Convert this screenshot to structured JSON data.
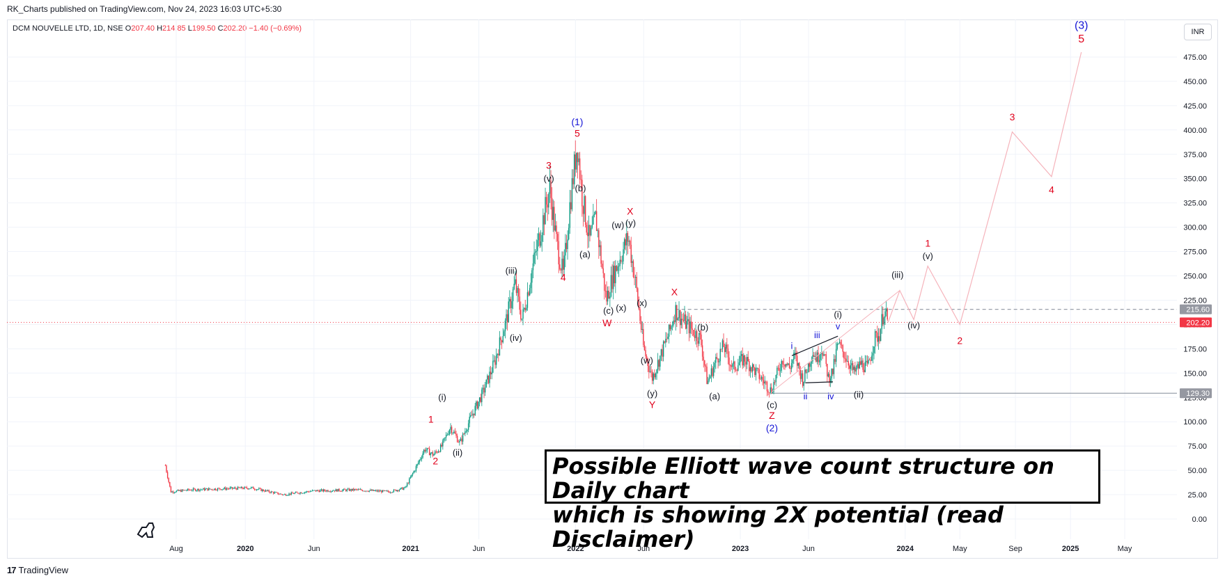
{
  "header": {
    "published": "RK_Charts published on TradingView.com, Nov 24, 2023 16:03 UTC+5:30"
  },
  "legend": {
    "symbol": "DCM NOUVELLE LTD, 1D, NSE",
    "open_label": "O",
    "open": "207.40",
    "high_label": "H",
    "high": "214.85",
    "low_label": "L",
    "low": "199.50",
    "close_label": "C",
    "close": "202.20",
    "change": "−1.40 (−0.69%)"
  },
  "currency_button": "INR",
  "footer": {
    "brand": "TradingView",
    "brand_mark": "17"
  },
  "annotation_box": {
    "text": "Possible Elliott wave count structure on Daily chart\nwhich is showing 2X potential (read Disclaimer)"
  },
  "colors": {
    "up": "#089981",
    "down": "#f23645",
    "wave_red": "#e0001b",
    "wave_blue": "#1515d6",
    "projection": "#f5b3bb",
    "grid": "#f0f3fa"
  },
  "chart_data": {
    "type": "candlestick",
    "title": "DCM NOUVELLE LTD, 1D, NSE",
    "ylabel": "INR",
    "ylim": [
      0,
      500
    ],
    "y_ticks": [
      "0.00",
      "25.00",
      "50.00",
      "75.00",
      "100.00",
      "125.00",
      "150.00",
      "175.00",
      "200.00",
      "225.00",
      "250.00",
      "275.00",
      "300.00",
      "325.00",
      "350.00",
      "375.00",
      "400.00",
      "425.00",
      "450.00",
      "475.00"
    ],
    "x_ticks": [
      {
        "label": "Aug",
        "date": "2019-08-01"
      },
      {
        "label": "2020",
        "date": "2020-01-01"
      },
      {
        "label": "Jun",
        "date": "2020-06-01"
      },
      {
        "label": "2021",
        "date": "2021-01-01"
      },
      {
        "label": "Jun",
        "date": "2021-06-01"
      },
      {
        "label": "2022",
        "date": "2022-01-01"
      },
      {
        "label": "Jun",
        "date": "2022-06-01"
      },
      {
        "label": "2023",
        "date": "2023-01-01"
      },
      {
        "label": "Jun",
        "date": "2023-06-01"
      },
      {
        "label": "2024",
        "date": "2024-01-01"
      },
      {
        "label": "May",
        "date": "2024-05-01"
      },
      {
        "label": "Sep",
        "date": "2024-09-01"
      },
      {
        "label": "2025",
        "date": "2025-01-01"
      },
      {
        "label": "May",
        "date": "2025-05-01"
      }
    ],
    "price_path": [
      [
        "2019-07-08",
        55
      ],
      [
        "2019-07-20",
        28
      ],
      [
        "2019-09-01",
        30
      ],
      [
        "2019-11-01",
        31
      ],
      [
        "2020-01-15",
        32
      ],
      [
        "2020-03-25",
        25
      ],
      [
        "2020-06-01",
        29
      ],
      [
        "2020-09-01",
        30
      ],
      [
        "2020-11-15",
        28
      ],
      [
        "2020-12-20",
        32
      ],
      [
        "2021-01-15",
        55
      ],
      [
        "2021-02-01",
        72
      ],
      [
        "2021-02-20",
        66
      ],
      [
        "2021-03-10",
        74
      ],
      [
        "2021-03-30",
        95
      ],
      [
        "2021-04-20",
        78
      ],
      [
        "2021-05-15",
        105
      ],
      [
        "2021-06-10",
        130
      ],
      [
        "2021-07-05",
        160
      ],
      [
        "2021-08-01",
        205
      ],
      [
        "2021-08-20",
        242
      ],
      [
        "2021-09-05",
        205
      ],
      [
        "2021-09-25",
        252
      ],
      [
        "2021-10-20",
        305
      ],
      [
        "2021-11-05",
        340
      ],
      [
        "2021-11-20",
        285
      ],
      [
        "2021-12-05",
        250
      ],
      [
        "2021-12-20",
        325
      ],
      [
        "2022-01-05",
        387
      ],
      [
        "2022-01-15",
        335
      ],
      [
        "2022-02-01",
        285
      ],
      [
        "2022-02-15",
        310
      ],
      [
        "2022-03-10",
        225
      ],
      [
        "2022-03-25",
        250
      ],
      [
        "2022-04-15",
        275
      ],
      [
        "2022-04-28",
        290
      ],
      [
        "2022-05-15",
        240
      ],
      [
        "2022-06-01",
        175
      ],
      [
        "2022-06-20",
        145
      ],
      [
        "2022-07-10",
        170
      ],
      [
        "2022-07-30",
        195
      ],
      [
        "2022-08-10",
        215
      ],
      [
        "2022-08-25",
        205
      ],
      [
        "2022-09-15",
        195
      ],
      [
        "2022-10-05",
        185
      ],
      [
        "2022-10-20",
        140
      ],
      [
        "2022-11-10",
        165
      ],
      [
        "2022-11-25",
        178
      ],
      [
        "2022-12-15",
        155
      ],
      [
        "2023-01-10",
        165
      ],
      [
        "2023-02-10",
        148
      ],
      [
        "2023-03-10",
        132
      ],
      [
        "2023-04-05",
        165
      ],
      [
        "2023-04-20",
        155
      ],
      [
        "2023-05-01",
        168
      ],
      [
        "2023-05-20",
        142
      ],
      [
        "2023-06-10",
        172
      ],
      [
        "2023-06-20",
        165
      ],
      [
        "2023-07-01",
        177
      ],
      [
        "2023-07-15",
        145
      ],
      [
        "2023-07-25",
        152
      ],
      [
        "2023-08-05",
        180
      ],
      [
        "2023-08-25",
        165
      ],
      [
        "2023-09-10",
        150
      ],
      [
        "2023-09-25",
        160
      ],
      [
        "2023-10-10",
        155
      ],
      [
        "2023-10-25",
        185
      ],
      [
        "2023-11-05",
        190
      ],
      [
        "2023-11-15",
        215
      ],
      [
        "2023-11-24",
        202.2
      ]
    ],
    "last_price": "202.20",
    "price_labels": [
      {
        "label": "215.60",
        "value": 215.6
      },
      {
        "label": "202.20",
        "value": 202.2
      },
      {
        "label": "129.30",
        "value": 129.3
      }
    ],
    "horizontal_lines": [
      {
        "value": 215.6,
        "style": "dashed",
        "from": "2022-08-10"
      },
      {
        "value": 129.3,
        "style": "solid",
        "from": "2023-03-10"
      }
    ],
    "projection": [
      [
        "2023-11-24",
        202
      ],
      [
        "2023-12-20",
        235
      ],
      [
        "2024-01-20",
        205
      ],
      [
        "2024-02-20",
        260
      ],
      [
        "2024-05-01",
        200
      ],
      [
        "2024-08-25",
        398
      ],
      [
        "2024-11-20",
        352
      ],
      [
        "2025-01-25",
        480
      ]
    ],
    "wave_labels": [
      {
        "t": "(1)",
        "date": "2022-01-05",
        "value": 405,
        "c": "blue",
        "s": 14
      },
      {
        "t": "5",
        "date": "2022-01-05",
        "value": 393,
        "c": "red",
        "s": 14
      },
      {
        "t": "3",
        "date": "2021-11-03",
        "value": 360,
        "c": "red",
        "s": 14
      },
      {
        "t": "(v)",
        "date": "2021-11-03",
        "value": 347,
        "c": "black",
        "s": 13
      },
      {
        "t": "(b)",
        "date": "2022-01-12",
        "value": 337,
        "c": "black",
        "s": 13
      },
      {
        "t": "X",
        "date": "2022-05-02",
        "value": 313,
        "c": "red",
        "s": 14
      },
      {
        "t": "(w)",
        "date": "2022-04-05",
        "value": 299,
        "c": "black",
        "s": 13
      },
      {
        "t": "(y)",
        "date": "2022-05-03",
        "value": 301,
        "c": "black",
        "s": 13
      },
      {
        "t": "(a)",
        "date": "2022-01-22",
        "value": 269,
        "c": "black",
        "s": 13
      },
      {
        "t": "4",
        "date": "2021-12-05",
        "value": 245,
        "c": "red",
        "s": 14
      },
      {
        "t": "(iii)",
        "date": "2021-08-12",
        "value": 252,
        "c": "black",
        "s": 13
      },
      {
        "t": "(c)",
        "date": "2022-03-15",
        "value": 211,
        "c": "black",
        "s": 13
      },
      {
        "t": "(x)",
        "date": "2022-04-12",
        "value": 214,
        "c": "black",
        "s": 13
      },
      {
        "t": "(x)",
        "date": "2022-05-28",
        "value": 219,
        "c": "black",
        "s": 13
      },
      {
        "t": "W",
        "date": "2022-03-12",
        "value": 198,
        "c": "red",
        "s": 14
      },
      {
        "t": "X",
        "date": "2022-08-08",
        "value": 230,
        "c": "red",
        "s": 14
      },
      {
        "t": "(iv)",
        "date": "2021-08-22",
        "value": 183,
        "c": "black",
        "s": 13
      },
      {
        "t": "(b)",
        "date": "2022-10-10",
        "value": 194,
        "c": "black",
        "s": 13
      },
      {
        "t": "(w)",
        "date": "2022-06-08",
        "value": 160,
        "c": "black",
        "s": 13
      },
      {
        "t": "(y)",
        "date": "2022-06-20",
        "value": 126,
        "c": "black",
        "s": 13
      },
      {
        "t": "Y",
        "date": "2022-06-20",
        "value": 114,
        "c": "red",
        "s": 14
      },
      {
        "t": "(a)",
        "date": "2022-11-05",
        "value": 123,
        "c": "black",
        "s": 13
      },
      {
        "t": "(c)",
        "date": "2023-03-12",
        "value": 114,
        "c": "black",
        "s": 13
      },
      {
        "t": "Z",
        "date": "2023-03-12",
        "value": 103,
        "c": "red",
        "s": 14
      },
      {
        "t": "(2)",
        "date": "2023-03-12",
        "value": 90,
        "c": "blue",
        "s": 14
      },
      {
        "t": "(i)",
        "date": "2021-03-12",
        "value": 122,
        "c": "black",
        "s": 13
      },
      {
        "t": "1",
        "date": "2021-02-15",
        "value": 99,
        "c": "red",
        "s": 14
      },
      {
        "t": "2",
        "date": "2021-02-25",
        "value": 56,
        "c": "red",
        "s": 14
      },
      {
        "t": "(ii)",
        "date": "2021-04-15",
        "value": 65,
        "c": "black",
        "s": 13
      },
      {
        "t": "i",
        "date": "2023-04-25",
        "value": 175,
        "c": "blue",
        "s": 13
      },
      {
        "t": "iii",
        "date": "2023-06-20",
        "value": 186,
        "c": "blue",
        "s": 13
      },
      {
        "t": "v",
        "date": "2023-08-05",
        "value": 195,
        "c": "blue",
        "s": 13
      },
      {
        "t": "ii",
        "date": "2023-05-25",
        "value": 123,
        "c": "blue",
        "s": 13
      },
      {
        "t": "iv",
        "date": "2023-07-20",
        "value": 123,
        "c": "blue",
        "s": 13
      },
      {
        "t": "(i)",
        "date": "2023-08-05",
        "value": 207,
        "c": "black",
        "s": 13
      },
      {
        "t": "(ii)",
        "date": "2023-09-20",
        "value": 125,
        "c": "black",
        "s": 13
      },
      {
        "t": "(iii)",
        "date": "2023-12-15",
        "value": 248,
        "c": "black",
        "s": 13
      },
      {
        "t": "(iv)",
        "date": "2024-01-20",
        "value": 196,
        "c": "black",
        "s": 13
      },
      {
        "t": "1",
        "date": "2024-02-20",
        "value": 280,
        "c": "red",
        "s": 14
      },
      {
        "t": "(v)",
        "date": "2024-02-20",
        "value": 267,
        "c": "black",
        "s": 13
      },
      {
        "t": "2",
        "date": "2024-05-01",
        "value": 180,
        "c": "red",
        "s": 14
      },
      {
        "t": "3",
        "date": "2024-08-25",
        "value": 410,
        "c": "red",
        "s": 14
      },
      {
        "t": "4",
        "date": "2024-11-20",
        "value": 335,
        "c": "red",
        "s": 14
      },
      {
        "t": "(3)",
        "date": "2025-01-25",
        "value": 504,
        "c": "blue",
        "s": 16
      },
      {
        "t": "5",
        "date": "2025-01-25",
        "value": 490,
        "c": "red",
        "s": 16
      }
    ]
  }
}
